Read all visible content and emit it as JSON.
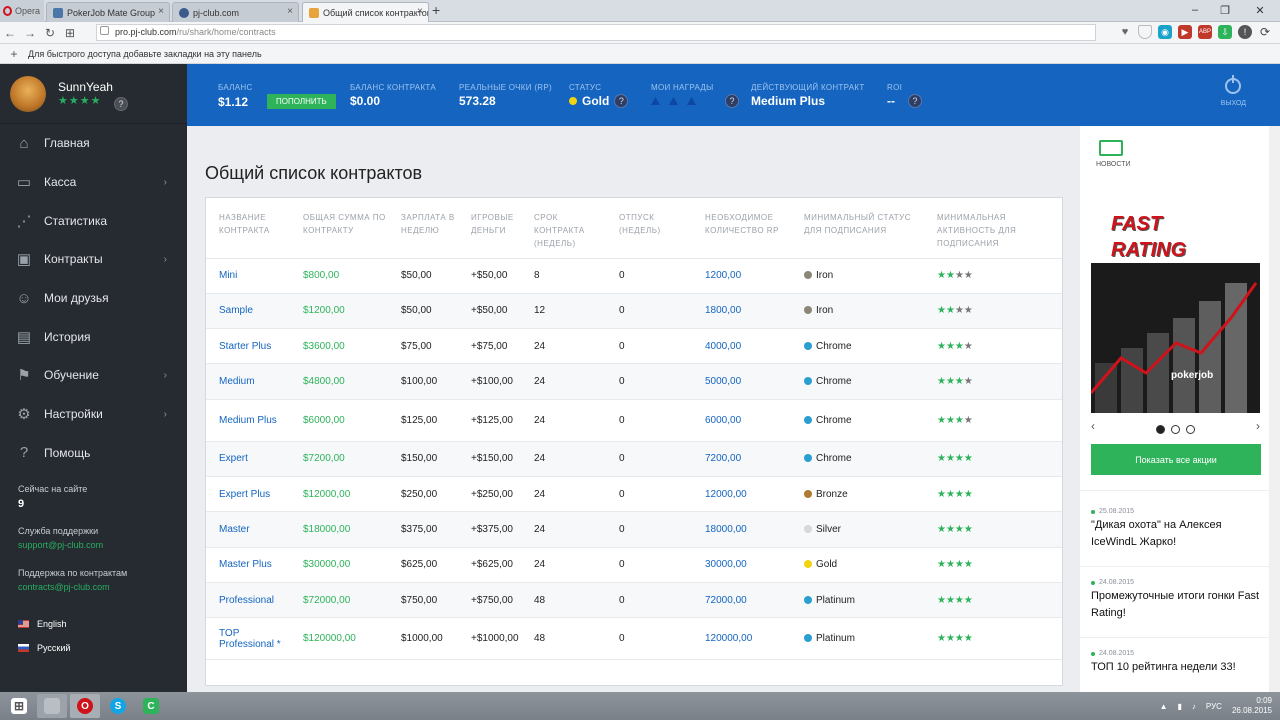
{
  "browser": {
    "menu_label": "Opera",
    "tabs": [
      {
        "title": "PokerJob Mate Group",
        "color": "#4a76a8"
      },
      {
        "title": "pj-club.com",
        "color": "#3b5b8c"
      },
      {
        "title": "Общий список контрактов",
        "color": "#e8a33b"
      }
    ],
    "url_host": "pro.pj-club.com",
    "url_path": "/ru/shark/home/contracts",
    "bookmarks_hint": "Для быстрого доступа добавьте закладки на эту панель"
  },
  "user": {
    "name": "SunnYeah",
    "stars": "★★★★",
    "help": "?"
  },
  "sidebar": {
    "items": [
      {
        "label": "Главная",
        "icon": "⌂",
        "arrow": ""
      },
      {
        "label": "Касса",
        "icon": "▭",
        "arrow": "›"
      },
      {
        "label": "Статистика",
        "icon": "⋰",
        "arrow": ""
      },
      {
        "label": "Контракты",
        "icon": "▣",
        "arrow": "›"
      },
      {
        "label": "Мои друзья",
        "icon": "☺",
        "arrow": ""
      },
      {
        "label": "История",
        "icon": "▤",
        "arrow": ""
      },
      {
        "label": "Обучение",
        "icon": "⚑",
        "arrow": "›"
      },
      {
        "label": "Настройки",
        "icon": "⚙",
        "arrow": "›"
      },
      {
        "label": "Помощь",
        "icon": "?",
        "arrow": ""
      }
    ],
    "online_label": "Сейчас на сайте",
    "online_count": "9",
    "support_label": "Служба поддержки",
    "support_email": "support@pj-club.com",
    "contracts_label": "Поддержка по контрактам",
    "contracts_email": "contracts@pj-club.com",
    "languages": [
      "English",
      "Русский"
    ]
  },
  "header": {
    "balance_label": "БАЛАНС",
    "balance_value": "$1.12",
    "pay_button": "ПОПОЛНИТЬ",
    "contract_balance_label": "БАЛАНС КОНТРАКТА",
    "contract_balance_value": "$0.00",
    "rp_label": "РЕАЛЬНЫЕ ОЧКИ (RP)",
    "rp_value": "573.28",
    "status_label": "СТАТУС",
    "status_value": "Gold",
    "awards_label": "МОИ НАГРАДЫ",
    "contract_label": "ДЕЙСТВУЮЩИЙ КОНТРАКТ",
    "contract_value": "Medium Plus",
    "roi_label": "ROI",
    "roi_value": "--",
    "logout_label": "ВЫХОД"
  },
  "page": {
    "title": "Общий список контрактов"
  },
  "table": {
    "headers": [
      "НАЗВАНИЕ КОНТРАКТА",
      "ОБЩАЯ СУММА ПО КОНТРАКТУ",
      "ЗАРПЛАТА В НЕДЕЛЮ",
      "ИГРОВЫЕ ДЕНЬГИ",
      "СРОК КОНТРАКТА (НЕДЕЛЬ)",
      "ОТПУСК (НЕДЕЛЬ)",
      "НЕОБХОДИМОЕ КОЛИЧЕСТВО RP",
      "МИНИМАЛЬНЫЙ СТАТУС ДЛЯ ПОДПИСАНИЯ",
      "МИНИМАЛЬНАЯ АКТИВНОСТЬ ДЛЯ ПОДПИСАНИЯ"
    ],
    "rows": [
      {
        "name": "Mini",
        "total": "$800,00",
        "salary": "$50,00",
        "game": "+$50,00",
        "term": "8",
        "vacation": "0",
        "rp": "1200,00",
        "status": "Iron",
        "status_color": "#8c8677",
        "stars_on": "★★",
        "stars_off": "★★"
      },
      {
        "name": "Sample",
        "total": "$1200,00",
        "salary": "$50,00",
        "game": "+$50,00",
        "term": "12",
        "vacation": "0",
        "rp": "1800,00",
        "status": "Iron",
        "status_color": "#8c8677",
        "stars_on": "★★",
        "stars_off": "★★"
      },
      {
        "name": "Starter Plus",
        "total": "$3600,00",
        "salary": "$75,00",
        "game": "+$75,00",
        "term": "24",
        "vacation": "0",
        "rp": "4000,00",
        "status": "Chrome",
        "status_color": "#2a9fd0",
        "stars_on": "★★★",
        "stars_off": "★"
      },
      {
        "name": "Medium",
        "total": "$4800,00",
        "salary": "$100,00",
        "game": "+$100,00",
        "term": "24",
        "vacation": "0",
        "rp": "5000,00",
        "status": "Chrome",
        "status_color": "#2a9fd0",
        "stars_on": "★★★",
        "stars_off": "★"
      },
      {
        "name": "Medium Plus",
        "total": "$6000,00",
        "salary": "$125,00",
        "game": "+$125,00",
        "term": "24",
        "vacation": "0",
        "rp": "6000,00",
        "status": "Chrome",
        "status_color": "#2a9fd0",
        "stars_on": "★★★",
        "stars_off": "★"
      },
      {
        "name": "Expert",
        "total": "$7200,00",
        "salary": "$150,00",
        "game": "+$150,00",
        "term": "24",
        "vacation": "0",
        "rp": "7200,00",
        "status": "Chrome",
        "status_color": "#2a9fd0",
        "stars_on": "★★★★",
        "stars_off": ""
      },
      {
        "name": "Expert Plus",
        "total": "$12000,00",
        "salary": "$250,00",
        "game": "+$250,00",
        "term": "24",
        "vacation": "0",
        "rp": "12000,00",
        "status": "Bronze",
        "status_color": "#b07a30",
        "stars_on": "★★★★",
        "stars_off": ""
      },
      {
        "name": "Master",
        "total": "$18000,00",
        "salary": "$375,00",
        "game": "+$375,00",
        "term": "24",
        "vacation": "0",
        "rp": "18000,00",
        "status": "Silver",
        "status_color": "#d6d8db",
        "stars_on": "★★★★",
        "stars_off": ""
      },
      {
        "name": "Master Plus",
        "total": "$30000,00",
        "salary": "$625,00",
        "game": "+$625,00",
        "term": "24",
        "vacation": "0",
        "rp": "30000,00",
        "status": "Gold",
        "status_color": "#f2d30f",
        "stars_on": "★★★★",
        "stars_off": ""
      },
      {
        "name": "Professional",
        "total": "$72000,00",
        "salary": "$750,00",
        "game": "+$750,00",
        "term": "48",
        "vacation": "0",
        "rp": "72000,00",
        "status": "Platinum",
        "status_color": "#2a9fd0",
        "stars_on": "★★★★",
        "stars_off": ""
      },
      {
        "name": "TOP Professional *",
        "total": "$120000,00",
        "salary": "$1000,00",
        "game": "+$1000,00",
        "term": "48",
        "vacation": "0",
        "rp": "120000,00",
        "status": "Platinum",
        "status_color": "#2a9fd0",
        "stars_on": "★★★★",
        "stars_off": ""
      }
    ]
  },
  "right": {
    "news_label": "НОВОСТИ",
    "banner_line1": "FAST",
    "banner_line2": "RATING",
    "banner_brand": "pokerjob",
    "show_all": "Показать все акции",
    "news": [
      {
        "date": "25.08.2015",
        "title": "\"Дикая охота\" на Алексея IceWindL Жарко!"
      },
      {
        "date": "24.08.2015",
        "title": "Промежуточные итоги гонки Fast Rating!"
      },
      {
        "date": "24.08.2015",
        "title": "ТОП 10 рейтинга недели 33!"
      }
    ]
  },
  "taskbar": {
    "lang": "РУС",
    "time": "0:09",
    "date": "26.08.2015"
  }
}
